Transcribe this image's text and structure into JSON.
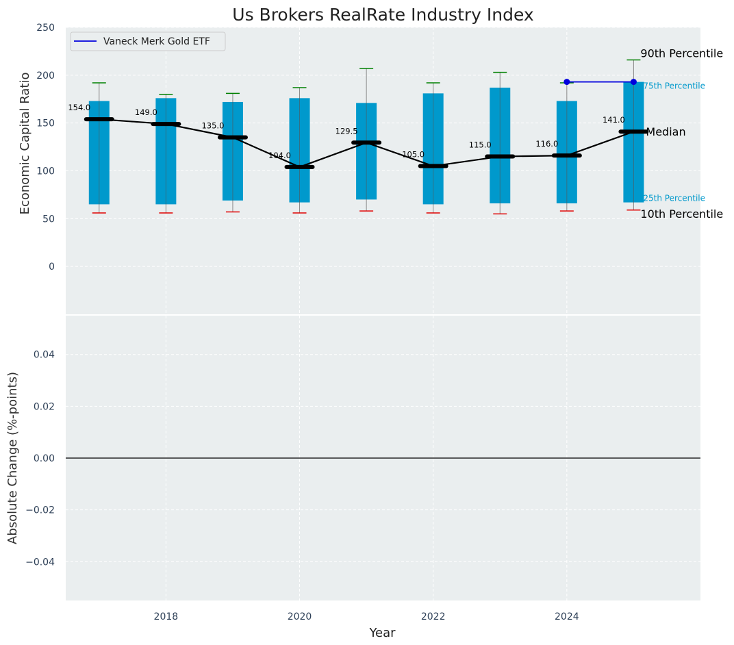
{
  "chart_data": [
    {
      "type": "box",
      "title": "Us Brokers RealRate Industry Index",
      "ylabel": "Economic Capital Ratio",
      "xlabel": "",
      "ylim": [
        -50,
        250
      ],
      "yticks": [
        0,
        50,
        100,
        150,
        200,
        250
      ],
      "xlim": [
        2016.5,
        2026
      ],
      "grid": true,
      "legend": {
        "position": "top-left",
        "entries": [
          "Vaneck Merk Gold ETF"
        ]
      },
      "years": [
        2017,
        2018,
        2019,
        2020,
        2021,
        2022,
        2023,
        2024,
        2025
      ],
      "p10": [
        56,
        56,
        57,
        56,
        58,
        56,
        55,
        58,
        59
      ],
      "p25": [
        65,
        65,
        69,
        67,
        70,
        65,
        66,
        66,
        67
      ],
      "median": [
        154.0,
        149.0,
        135.0,
        104.0,
        129.5,
        105.0,
        115.0,
        116.0,
        141.0
      ],
      "median_labels": [
        "154.0",
        "149.0",
        "135.0",
        "104.0",
        "129.5",
        "105.0",
        "115.0",
        "116.0",
        "141.0"
      ],
      "p75": [
        173,
        176,
        172,
        176,
        171,
        181,
        187,
        173,
        193
      ],
      "p90": [
        192,
        180,
        181,
        187,
        207,
        192,
        203,
        192,
        216
      ],
      "company_series": {
        "name": "Vaneck Merk Gold ETF",
        "x": [
          2024,
          2025
        ],
        "y": [
          193,
          193
        ]
      },
      "annotations": {
        "p90": "90th Percentile",
        "p75": "75th Percentile",
        "median": "Median",
        "p25": "25th Percentile",
        "p10": "10th Percentile"
      }
    },
    {
      "type": "line",
      "title": "",
      "ylabel": "Absolute Change (%-points)",
      "xlabel": "Year",
      "ylim": [
        -0.055,
        0.055
      ],
      "yticks": [
        -0.04,
        -0.02,
        0.0,
        0.02,
        0.04
      ],
      "ytick_labels": [
        "−0.04",
        "−0.02",
        "0.00",
        "0.02",
        "0.04"
      ],
      "xticks": [
        2018,
        2020,
        2022,
        2024
      ],
      "xtick_labels": [
        "2018",
        "2020",
        "2022",
        "2024"
      ],
      "zero_line": 0.0,
      "series": []
    }
  ],
  "colors": {
    "panel_bg": "#eaeeef",
    "box_fill": "#0099cc",
    "median_line": "#000000",
    "p90_cap": "#008000",
    "p10_cap": "#e00000",
    "company": "#0000dd",
    "annotation_box": "#0099cc",
    "tick_text": "#2e4057"
  }
}
